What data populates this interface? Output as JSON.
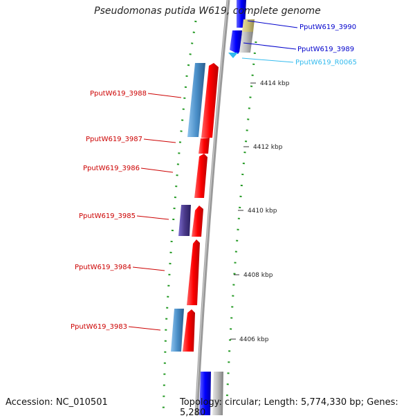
{
  "title": "Pseudomonas putida W619, complete genome",
  "footer": {
    "accession": "Accession: NC_010501",
    "topology": "Topology: circular; Length: 5,774,330 bp; Genes: 5,280"
  },
  "colors": {
    "cds_forward_highlight": "#ff0000",
    "cds_forward": "#0000ff",
    "cds_blue_light": "#4a8fc8",
    "cds_purple": "#4a3a8a",
    "rna_cyan": "#33bbee",
    "olive": "#c8bd77",
    "gray": "#aaaaaa",
    "backbone": "#909090",
    "gc_skew": "#229922"
  },
  "axis_labels": [
    {
      "id": "tick-4414",
      "label": "4414 kbp"
    },
    {
      "id": "tick-4412",
      "label": "4412 kbp"
    },
    {
      "id": "tick-4410",
      "label": "4410 kbp"
    },
    {
      "id": "tick-4408",
      "label": "4408 kbp"
    },
    {
      "id": "tick-4406",
      "label": "4406 kbp"
    }
  ],
  "gene_labels": [
    {
      "id": "gene-PputW619_3990",
      "label": "PputW619_3990",
      "color": "#0000cc"
    },
    {
      "id": "gene-PputW619_3989",
      "label": "PputW619_3989",
      "color": "#0000cc"
    },
    {
      "id": "gene-PputW619_R0065",
      "label": "PputW619_R0065",
      "color": "#33bbee"
    },
    {
      "id": "gene-PputW619_3988",
      "label": "PputW619_3988",
      "color": "#cc0000"
    },
    {
      "id": "gene-PputW619_3987",
      "label": "PputW619_3987",
      "color": "#cc0000"
    },
    {
      "id": "gene-PputW619_3986",
      "label": "PputW619_3986",
      "color": "#cc0000"
    },
    {
      "id": "gene-PputW619_3985",
      "label": "PputW619_3985",
      "color": "#cc0000"
    },
    {
      "id": "gene-PputW619_3984",
      "label": "PputW619_3984",
      "color": "#cc0000"
    },
    {
      "id": "gene-PputW619_3983",
      "label": "PputW619_3983",
      "color": "#cc0000"
    }
  ]
}
